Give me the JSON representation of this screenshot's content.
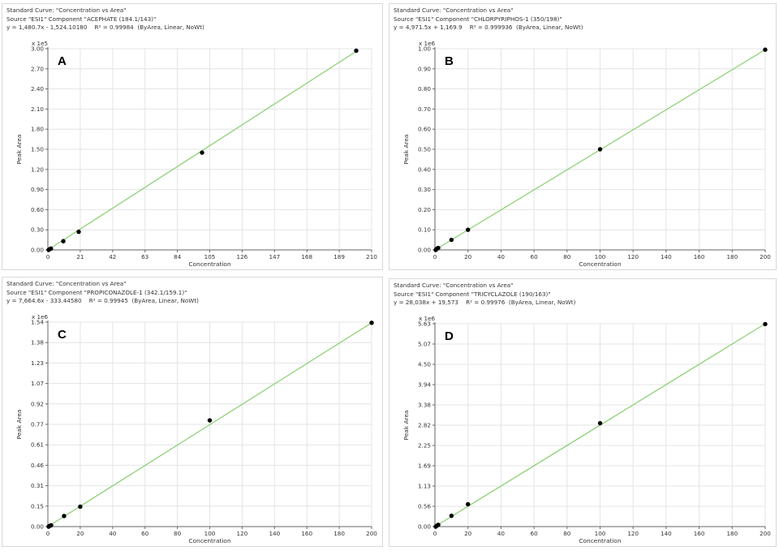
{
  "colors": {
    "fit_line": "#8fd27a",
    "point": "#000000",
    "grid": "#e4e4e4",
    "axis": "#666666"
  },
  "chart_data": [
    {
      "type": "scatter",
      "panel_label": "A",
      "header": [
        "Standard Curve: \"Concentration vs Area\"",
        "Source \"ESI1\" Component \"ACEPHATE (184.1/143)\"",
        "y = 1,480.7x - 1,524.10180    R² = 0.99984  (ByArea, Linear, NoWt)"
      ],
      "multiplier": "x 1e5",
      "xlabel": "Concentration",
      "ylabel": "Peak Area",
      "xlim": [
        0,
        210
      ],
      "ylim": [
        0,
        3.0
      ],
      "xticks": [
        "0",
        "21",
        "42",
        "63",
        "84",
        "105",
        "126",
        "147",
        "168",
        "189",
        "210"
      ],
      "yticks": [
        "0.00",
        "0.30",
        "0.60",
        "0.90",
        "1.20",
        "1.50",
        "1.80",
        "2.10",
        "2.40",
        "2.70",
        "3.00"
      ],
      "fit_line": [
        [
          0,
          0
        ],
        [
          200,
          2.96
        ]
      ],
      "points": [
        [
          0.5,
          0.0
        ],
        [
          1,
          0.01
        ],
        [
          2,
          0.02
        ],
        [
          10,
          0.13
        ],
        [
          20,
          0.27
        ],
        [
          100,
          1.45
        ],
        [
          200,
          2.97
        ]
      ],
      "grid": true
    },
    {
      "type": "scatter",
      "panel_label": "B",
      "header": [
        "Standard Curve: \"Concentration vs Area\"",
        "Source \"ESI1\" Component \"CHLORPYRIPHOS-1 (350/198)\"",
        "y = 4,971.5x + 1,169.9    R² = 0.999936  (ByArea, Linear, NoWt)"
      ],
      "multiplier": "x 1e6",
      "xlabel": "Concentration",
      "ylabel": "Peak Area",
      "xlim": [
        0,
        200
      ],
      "ylim": [
        0,
        1.0
      ],
      "xticks": [
        "0",
        "20",
        "40",
        "60",
        "80",
        "100",
        "120",
        "140",
        "160",
        "180",
        "200"
      ],
      "yticks": [
        "0.00",
        "0.10",
        "0.20",
        "0.30",
        "0.40",
        "0.50",
        "0.60",
        "0.70",
        "0.80",
        "0.90",
        "1.00"
      ],
      "fit_line": [
        [
          0,
          0
        ],
        [
          200,
          0.995
        ]
      ],
      "points": [
        [
          0.5,
          0.0
        ],
        [
          1,
          0.005
        ],
        [
          2,
          0.01
        ],
        [
          10,
          0.05
        ],
        [
          20,
          0.1
        ],
        [
          100,
          0.5
        ],
        [
          200,
          0.995
        ]
      ],
      "grid": true
    },
    {
      "type": "scatter",
      "panel_label": "C",
      "header": [
        "Standard Curve: \"Concentration vs Area\"",
        "Source \"ESI1\" Component \"PROPICONAZOLE-1 (342.1/159.1)\"",
        "y = 7,664.6x - 333.44580    R² = 0.99945  (ByArea, Linear, NoWt)"
      ],
      "multiplier": "x 1e6",
      "xlabel": "Concentration",
      "ylabel": "Peak Area",
      "xlim": [
        0,
        200
      ],
      "ylim": [
        0,
        1.54
      ],
      "xticks": [
        "0",
        "20",
        "40",
        "60",
        "80",
        "100",
        "120",
        "140",
        "160",
        "180",
        "200"
      ],
      "yticks": [
        "0.00",
        "0.15",
        "0.31",
        "0.46",
        "0.61",
        "0.77",
        "0.92",
        "1.07",
        "1.23",
        "1.38",
        "1.54"
      ],
      "fit_line": [
        [
          0,
          0
        ],
        [
          200,
          1.535
        ]
      ],
      "points": [
        [
          0.5,
          0.0
        ],
        [
          1,
          0.005
        ],
        [
          2,
          0.01
        ],
        [
          10,
          0.08
        ],
        [
          20,
          0.15
        ],
        [
          100,
          0.8
        ],
        [
          200,
          1.535
        ]
      ],
      "grid": true
    },
    {
      "type": "scatter",
      "panel_label": "D",
      "header": [
        "Standard Curve: \"Concentration vs Area\"",
        "Source \"ESI1\" Component \"TRICYCLAZOLE (190/163)\"",
        "y = 28,038x + 19,573    R² = 0.99976  (ByArea, Linear, NoWt)"
      ],
      "multiplier": "x 1e6",
      "xlabel": "Concentration",
      "ylabel": "Peak Area",
      "xlim": [
        0,
        200
      ],
      "ylim": [
        0,
        5.63
      ],
      "xticks": [
        "0",
        "20",
        "40",
        "60",
        "80",
        "100",
        "120",
        "140",
        "160",
        "180",
        "200"
      ],
      "yticks": [
        "0.00",
        "0.56",
        "1.13",
        "1.69",
        "2.25",
        "2.82",
        "3.38",
        "3.94",
        "4.50",
        "5.07",
        "5.63"
      ],
      "fit_line": [
        [
          0,
          0
        ],
        [
          200,
          5.63
        ]
      ],
      "points": [
        [
          0.5,
          0.0
        ],
        [
          1,
          0.02
        ],
        [
          2,
          0.05
        ],
        [
          10,
          0.3
        ],
        [
          20,
          0.62
        ],
        [
          100,
          2.87
        ],
        [
          200,
          5.62
        ]
      ],
      "grid": true
    }
  ]
}
